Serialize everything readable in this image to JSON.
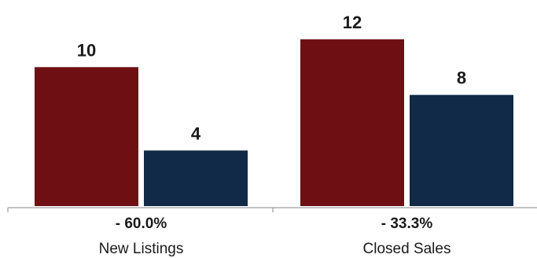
{
  "chart_data": {
    "type": "bar",
    "categories": [
      "New Listings",
      "Closed Sales"
    ],
    "series": [
      {
        "values": [
          10,
          12
        ],
        "color": "#6e1013"
      },
      {
        "values": [
          4,
          8
        ],
        "color": "#102a47"
      }
    ],
    "changes": [
      "- 60.0%",
      "- 33.3%"
    ],
    "ylim": [
      0,
      12
    ],
    "grid": false,
    "legend": "none"
  }
}
